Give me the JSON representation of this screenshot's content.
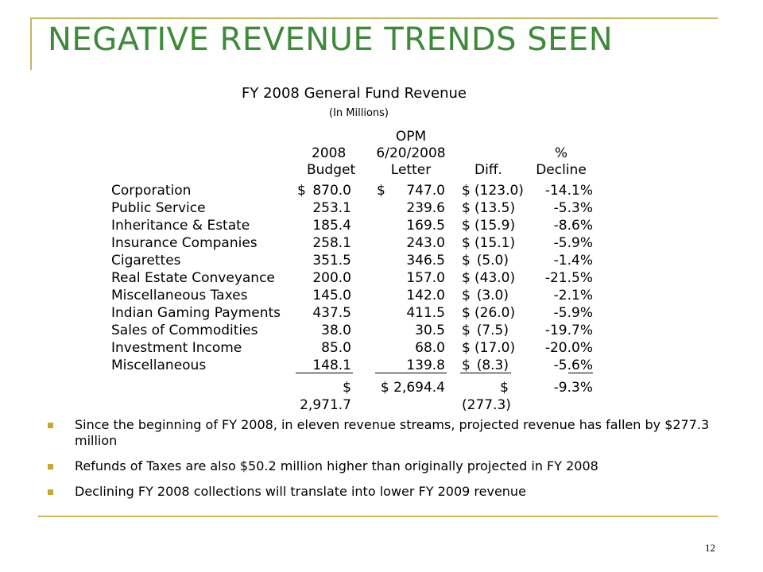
{
  "slide": {
    "title": "NEGATIVE REVENUE TRENDS SEEN",
    "page_number": "12",
    "accent_color": "#c8b560",
    "title_color": "#3e8a3a"
  },
  "table": {
    "title": "FY 2008 General Fund Revenue",
    "subtitle": "(In Millions)",
    "headers": {
      "budget": [
        "2008",
        "Budget"
      ],
      "letter": [
        "OPM",
        "6/20/2008",
        "Letter"
      ],
      "diff": "Diff.",
      "decline": [
        "%",
        "Decline"
      ]
    },
    "rows": [
      {
        "label": "Corporation",
        "budget": "870.0",
        "letter": "747.0",
        "diff": "(123.0)",
        "pct": "-14.1%",
        "budget_sym": "$",
        "letter_sym": "$",
        "diff_sym": "$"
      },
      {
        "label": "Public Service",
        "budget": "253.1",
        "letter": "239.6",
        "diff": "(13.5)",
        "pct": "-5.3%",
        "budget_sym": "",
        "letter_sym": "",
        "diff_sym": "$"
      },
      {
        "label": "Inheritance & Estate",
        "budget": "185.4",
        "letter": "169.5",
        "diff": "(15.9)",
        "pct": "-8.6%",
        "budget_sym": "",
        "letter_sym": "",
        "diff_sym": "$"
      },
      {
        "label": "Insurance Companies",
        "budget": "258.1",
        "letter": "243.0",
        "diff": "(15.1)",
        "pct": "-5.9%",
        "budget_sym": "",
        "letter_sym": "",
        "diff_sym": "$"
      },
      {
        "label": "Cigarettes",
        "budget": "351.5",
        "letter": "346.5",
        "diff": "(5.0)",
        "pct": "-1.4%",
        "budget_sym": "",
        "letter_sym": "",
        "diff_sym": "$"
      },
      {
        "label": "Real Estate Conveyance",
        "budget": "200.0",
        "letter": "157.0",
        "diff": "(43.0)",
        "pct": "-21.5%",
        "budget_sym": "",
        "letter_sym": "",
        "diff_sym": "$"
      },
      {
        "label": "Miscellaneous Taxes",
        "budget": "145.0",
        "letter": "142.0",
        "diff": "(3.0)",
        "pct": "-2.1%",
        "budget_sym": "",
        "letter_sym": "",
        "diff_sym": "$"
      },
      {
        "label": "Indian Gaming Payments",
        "budget": "437.5",
        "letter": "411.5",
        "diff": "(26.0)",
        "pct": "-5.9%",
        "budget_sym": "",
        "letter_sym": "",
        "diff_sym": "$"
      },
      {
        "label": "Sales of Commodities",
        "budget": "38.0",
        "letter": "30.5",
        "diff": "(7.5)",
        "pct": "-19.7%",
        "budget_sym": "",
        "letter_sym": "",
        "diff_sym": "$"
      },
      {
        "label": "Investment Income",
        "budget": "85.0",
        "letter": "68.0",
        "diff": "(17.0)",
        "pct": "-20.0%",
        "budget_sym": "",
        "letter_sym": "",
        "diff_sym": "$"
      },
      {
        "label": "Miscellaneous",
        "budget": "148.1",
        "letter": "139.8",
        "diff": "(8.3)",
        "pct": "-5.6%",
        "budget_sym": "",
        "letter_sym": "",
        "diff_sym": "$"
      }
    ],
    "total": {
      "budget": "$ 2,971.7",
      "letter": "$ 2,694.4",
      "diff": "$ (277.3)",
      "pct": "-9.3%"
    }
  },
  "bullets": [
    "Since the beginning of FY 2008, in eleven revenue streams, projected revenue has fallen by $277.3 million",
    "Refunds of Taxes are also $50.2 million higher than originally projected in FY 2008",
    "Declining FY 2008 collections will translate into lower FY 2009 revenue"
  ]
}
